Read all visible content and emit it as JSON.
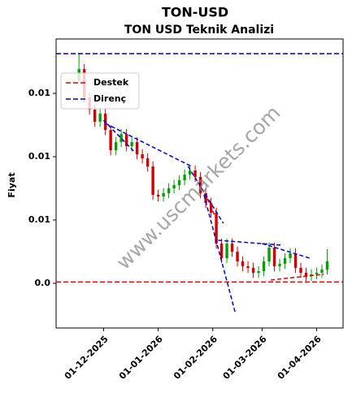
{
  "chart_data": {
    "type": "candlestick",
    "title": "TON-USD",
    "subtitle": "TON USD Teknik Analizi",
    "y_label": "Fiyat",
    "watermark": "www.uscmarkets.com",
    "up_color": "#00a000",
    "down_color": "#d00000",
    "xlim": [
      "2025-11-04",
      "2026-04-16"
    ],
    "xticks": [
      {
        "value": "2025-12-01",
        "label": "01-12-2025"
      },
      {
        "value": "2026-01-01",
        "label": "01-01-2026"
      },
      {
        "value": "2026-02-01",
        "label": "01-02-2026"
      },
      {
        "value": "2026-03-01",
        "label": "01-03-2026"
      },
      {
        "value": "2026-04-01",
        "label": "01-04-2026"
      }
    ],
    "ylim": [
      -0.00353,
      0.0193
    ],
    "yticks": [
      {
        "value": 0,
        "label": "0.0"
      },
      {
        "value": 0.005,
        "label": "0.01"
      },
      {
        "value": 0.01,
        "label": "0.01"
      },
      {
        "value": 0.015,
        "label": "0.01"
      }
    ],
    "legend_position": "upper left",
    "x": [
      "2025-11-17",
      "2025-11-20",
      "2025-11-23",
      "2025-11-26",
      "2025-11-29",
      "2025-12-02",
      "2025-12-05",
      "2025-12-08",
      "2025-12-11",
      "2025-12-14",
      "2025-12-17",
      "2025-12-20",
      "2025-12-23",
      "2025-12-26",
      "2025-12-29",
      "2026-01-01",
      "2026-01-04",
      "2026-01-07",
      "2026-01-10",
      "2026-01-13",
      "2026-01-16",
      "2026-01-19",
      "2026-01-22",
      "2026-01-25",
      "2026-01-28",
      "2026-01-31",
      "2026-02-03",
      "2026-02-06",
      "2026-02-09",
      "2026-02-12",
      "2026-02-15",
      "2026-02-18",
      "2026-02-21",
      "2026-02-24",
      "2026-02-27",
      "2026-03-02",
      "2026-03-05",
      "2026-03-08",
      "2026-03-11",
      "2026-03-14",
      "2026-03-17",
      "2026-03-20",
      "2026-03-23",
      "2026-03-26",
      "2026-03-29",
      "2026-04-01",
      "2026-04-04",
      "2026-04-07"
    ],
    "open": [
      0.016,
      0.01692,
      0.01468,
      0.01372,
      0.01276,
      0.0134,
      0.01211,
      0.01051,
      0.01115,
      0.01179,
      0.01083,
      0.01115,
      0.01019,
      0.00987,
      0.00923,
      0.00699,
      0.00686,
      0.00712,
      0.0075,
      0.00776,
      0.00814,
      0.00859,
      0.00891,
      0.0084,
      0.00712,
      0.00635,
      0.00558,
      0.00314,
      0.00199,
      0.00314,
      0.0025,
      0.00173,
      0.00135,
      0.00122,
      0.00083,
      0.00096,
      0.00173,
      0.00282,
      0.00135,
      0.00154,
      0.00199,
      0.00237,
      0.00122,
      0.00083,
      0.00058,
      0.00071,
      0.00083,
      0.00109
    ],
    "high": [
      0.0182,
      0.01732,
      0.01508,
      0.01412,
      0.0138,
      0.0138,
      0.01251,
      0.01155,
      0.01219,
      0.01219,
      0.01155,
      0.01155,
      0.01059,
      0.01027,
      0.00963,
      0.00739,
      0.00752,
      0.0079,
      0.00816,
      0.00854,
      0.00899,
      0.00931,
      0.00931,
      0.0088,
      0.00752,
      0.00675,
      0.00598,
      0.00354,
      0.00354,
      0.00354,
      0.0029,
      0.00213,
      0.00175,
      0.00162,
      0.00136,
      0.00213,
      0.00322,
      0.00322,
      0.00194,
      0.00239,
      0.00277,
      0.00277,
      0.00162,
      0.00123,
      0.00111,
      0.00123,
      0.00149,
      0.0027
    ],
    "low": [
      0.0156,
      0.01428,
      0.01332,
      0.01236,
      0.01236,
      0.01171,
      0.01011,
      0.01011,
      0.01075,
      0.01043,
      0.01043,
      0.00979,
      0.00947,
      0.00883,
      0.00659,
      0.00646,
      0.00646,
      0.00672,
      0.0071,
      0.00736,
      0.00774,
      0.00819,
      0.008,
      0.00672,
      0.00595,
      0.00518,
      0.00274,
      0.00159,
      0.00159,
      0.0021,
      0.00133,
      0.00095,
      0.00082,
      0.00043,
      0.00043,
      0.00056,
      0.00133,
      0.00095,
      0.00095,
      0.00114,
      0.00159,
      0.00082,
      0.00043,
      0.00018,
      0.00018,
      0.00031,
      0.00043,
      0.00069
    ],
    "close": [
      0.01692,
      0.01468,
      0.01372,
      0.01276,
      0.0134,
      0.01211,
      0.01051,
      0.01115,
      0.01179,
      0.01083,
      0.01115,
      0.01019,
      0.00987,
      0.00923,
      0.00699,
      0.00686,
      0.00712,
      0.0075,
      0.00776,
      0.00814,
      0.00859,
      0.00891,
      0.0084,
      0.00712,
      0.00635,
      0.00558,
      0.00314,
      0.00199,
      0.00314,
      0.0025,
      0.00173,
      0.00135,
      0.00122,
      0.00083,
      0.00096,
      0.00173,
      0.00282,
      0.00135,
      0.00154,
      0.00199,
      0.00237,
      0.00122,
      0.00083,
      0.00058,
      0.00071,
      0.00083,
      0.00109,
      0.00173
    ],
    "series": [
      {
        "name": "Destek",
        "color": "#e00000",
        "level": 0.0001,
        "trend_lines": [
          {
            "x": [
              "2026-01-29",
              "2026-02-04"
            ],
            "y": [
              0.00667,
              0.00474
            ]
          },
          {
            "x": [
              "2026-03-06",
              "2026-04-05"
            ],
            "y": [
              0.00026,
              0.00071
            ]
          }
        ]
      },
      {
        "name": "Direnç",
        "color": "#0000cc",
        "level": 0.01814,
        "trend_lines": [
          {
            "x": [
              "2025-12-01",
              "2025-12-18"
            ],
            "y": [
              0.01288,
              0.01045
            ]
          },
          {
            "x": [
              "2025-12-02",
              "2026-01-20"
            ],
            "y": [
              0.01263,
              0.00923
            ]
          },
          {
            "x": [
              "2026-01-18",
              "2026-02-07"
            ],
            "y": [
              0.00923,
              0.00474
            ]
          },
          {
            "x": [
              "2026-01-27",
              "2026-02-14"
            ],
            "y": [
              0.00699,
              -0.00244
            ]
          },
          {
            "x": [
              "2026-02-04",
              "2026-03-12"
            ],
            "y": [
              0.0034,
              0.00301
            ]
          },
          {
            "x": [
              "2026-03-01",
              "2026-03-28"
            ],
            "y": [
              0.00314,
              0.00199
            ]
          }
        ]
      }
    ]
  }
}
